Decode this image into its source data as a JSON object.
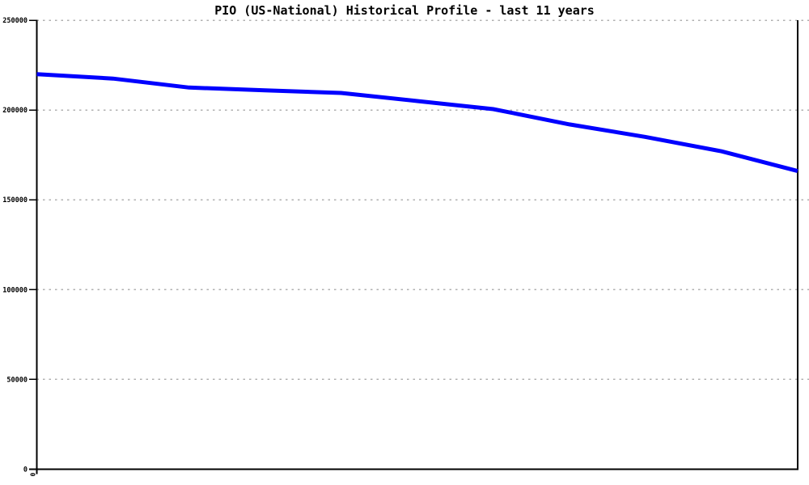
{
  "page": {
    "background_color": "#ffffff"
  },
  "chart_data": {
    "type": "line",
    "title": "PIO (US-National) Historical Profile - last 11 years",
    "xlabel": "",
    "ylabel": "",
    "ylim": [
      0,
      250000
    ],
    "y_ticks": [
      0,
      50000,
      100000,
      150000,
      200000,
      250000
    ],
    "y_tick_labels": [
      "0",
      "50000",
      "100000",
      "150000",
      "200000",
      "250000"
    ],
    "x_tick_labels": [
      "0"
    ],
    "x_tick_label_rotation_deg": 90,
    "grid": "horizontal-dashed",
    "legend": "none",
    "series": [
      {
        "name": "PIO (US-National)",
        "color": "#0000ff",
        "line_width": 5,
        "x": [
          0,
          1,
          2,
          3,
          4,
          5,
          6,
          7,
          8,
          9,
          10
        ],
        "values": [
          220000,
          217500,
          212500,
          211000,
          209500,
          205000,
          200500,
          192000,
          185000,
          177000,
          166000
        ]
      }
    ],
    "colors": {
      "grid": "#b0b0b0",
      "axis": "#000000",
      "title_text": "#000000",
      "tick_label_text": "#000000",
      "background": "#ffffff"
    }
  }
}
